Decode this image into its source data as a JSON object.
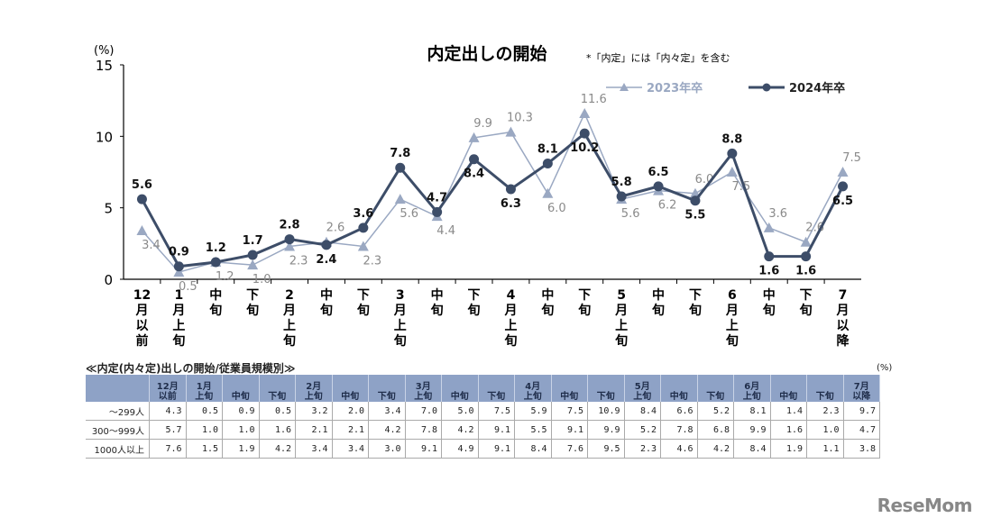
{
  "chart_data": {
    "type": "line",
    "title": "内定出しの開始",
    "note": "*「内定」には「内々定」を含む",
    "ylabel": "(%)",
    "ylim": [
      0,
      15
    ],
    "yticks": [
      0,
      5,
      10,
      15
    ],
    "categories": [
      "12月以前",
      "1月上旬",
      "中旬",
      "下旬",
      "2月上旬",
      "中旬",
      "下旬",
      "3月上旬",
      "中旬",
      "下旬",
      "4月上旬",
      "中旬",
      "下旬",
      "5月上旬",
      "中旬",
      "下旬",
      "6月上旬",
      "中旬",
      "下旬",
      "7月以降"
    ],
    "series": [
      {
        "name": "2023年卒",
        "color": "#9aa8c2",
        "marker": "triangle",
        "values": [
          3.4,
          0.5,
          1.2,
          1.0,
          2.3,
          2.6,
          2.3,
          5.6,
          4.4,
          9.9,
          10.3,
          6.0,
          11.6,
          5.6,
          6.2,
          6.0,
          7.5,
          3.6,
          2.6,
          7.5
        ]
      },
      {
        "name": "2024年卒",
        "color": "#3d4d68",
        "marker": "circle",
        "values": [
          5.6,
          0.9,
          1.2,
          1.7,
          2.8,
          2.4,
          3.6,
          7.8,
          4.7,
          8.4,
          6.3,
          8.1,
          10.2,
          5.8,
          6.5,
          5.5,
          8.8,
          1.6,
          1.6,
          6.5
        ]
      }
    ],
    "legend": "top-right",
    "grid": false
  },
  "table": {
    "title": "≪内定(内々定)出しの開始/従業員規模別≫",
    "unit": "(%)",
    "headers": [
      [
        "12月",
        "以前"
      ],
      [
        "1月",
        "上旬"
      ],
      [
        "",
        "中旬"
      ],
      [
        "",
        "下旬"
      ],
      [
        "2月",
        "上旬"
      ],
      [
        "",
        "中旬"
      ],
      [
        "",
        "下旬"
      ],
      [
        "3月",
        "上旬"
      ],
      [
        "",
        "中旬"
      ],
      [
        "",
        "下旬"
      ],
      [
        "4月",
        "上旬"
      ],
      [
        "",
        "中旬"
      ],
      [
        "",
        "下旬"
      ],
      [
        "5月",
        "上旬"
      ],
      [
        "",
        "中旬"
      ],
      [
        "",
        "下旬"
      ],
      [
        "6月",
        "上旬"
      ],
      [
        "",
        "中旬"
      ],
      [
        "",
        "下旬"
      ],
      [
        "7月",
        "以降"
      ]
    ],
    "rows": [
      {
        "label": "～299人",
        "values": [
          "4.3",
          "0.5",
          "0.9",
          "0.5",
          "3.2",
          "2.0",
          "3.4",
          "7.0",
          "5.0",
          "7.5",
          "5.9",
          "7.5",
          "10.9",
          "8.4",
          "6.6",
          "5.2",
          "8.1",
          "1.4",
          "2.3",
          "9.7"
        ]
      },
      {
        "label": "300～999人",
        "values": [
          "5.7",
          "1.0",
          "1.0",
          "1.6",
          "2.1",
          "2.1",
          "4.2",
          "7.8",
          "4.2",
          "9.1",
          "5.5",
          "9.1",
          "9.9",
          "5.2",
          "7.8",
          "6.8",
          "9.9",
          "1.6",
          "1.0",
          "4.7"
        ]
      },
      {
        "label": "1000人以上",
        "values": [
          "7.6",
          "1.5",
          "1.9",
          "4.2",
          "3.4",
          "3.4",
          "3.0",
          "9.1",
          "4.9",
          "9.1",
          "8.4",
          "7.6",
          "9.5",
          "2.3",
          "4.6",
          "4.2",
          "8.4",
          "1.9",
          "1.1",
          "3.8"
        ]
      }
    ]
  },
  "logo": "ReseMom"
}
